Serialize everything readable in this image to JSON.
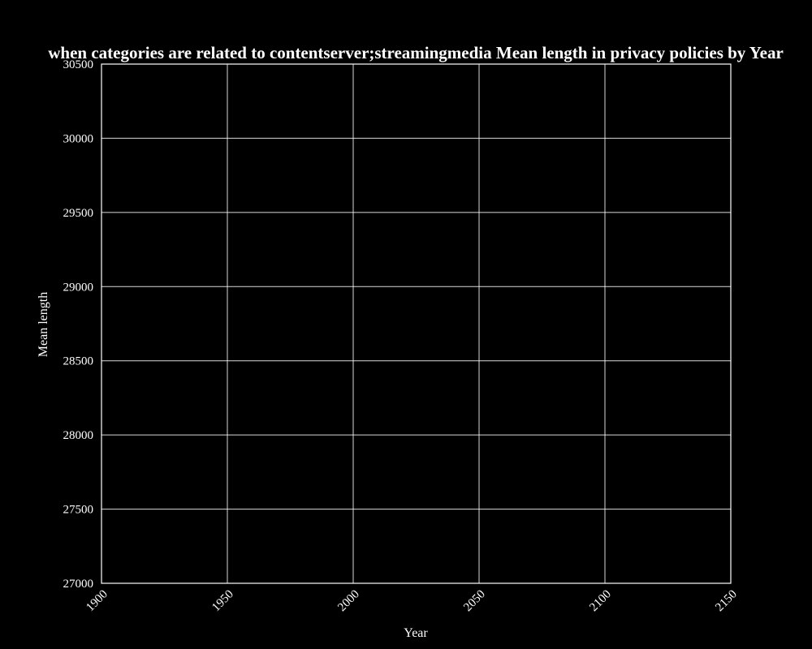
{
  "chart_data": {
    "type": "line",
    "title": "when categories are related to contentserver;streamingmedia Mean length in privacy policies by Year",
    "xlabel": "Year",
    "ylabel": "Mean length",
    "xlim": [
      1900,
      2150
    ],
    "ylim": [
      27000,
      30500
    ],
    "xticks": [
      "1900",
      "1950",
      "2000",
      "2050",
      "2100",
      "2150"
    ],
    "yticks": [
      "27000",
      "27500",
      "28000",
      "28500",
      "29000",
      "29500",
      "30000",
      "30500"
    ],
    "grid": true,
    "series": [],
    "colors": {
      "background": "#000000",
      "foreground": "#ffffff"
    }
  }
}
